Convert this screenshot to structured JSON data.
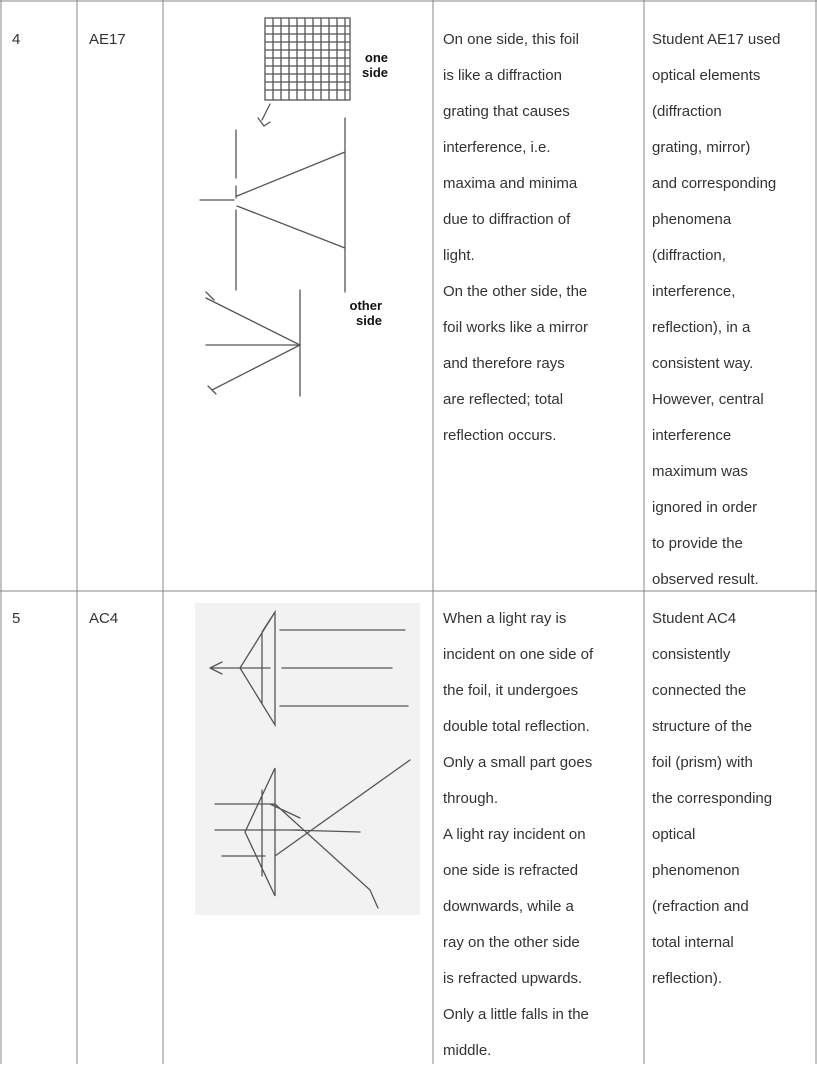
{
  "table": {
    "rows": [
      {
        "number": "4",
        "code": "AE17",
        "figure_labels": [
          [
            "one",
            "side"
          ],
          [
            "other",
            "side"
          ]
        ],
        "description": [
          "On one side, this foil",
          "is like a diffraction",
          "grating that causes",
          "interference, i.e.",
          "maxima and minima",
          "due to diffraction of",
          "light.",
          "On the other side, the",
          "foil works like a mirror",
          "and therefore rays",
          "are reflected; total",
          "reflection occurs."
        ],
        "comment": [
          "Student AE17 used",
          "optical elements",
          "(diffraction",
          "grating, mirror)",
          "and corresponding",
          "phenomena",
          "(diffraction,",
          "interference,",
          "reflection), in a",
          "consistent way.",
          "However, central",
          "interference",
          "maximum was",
          "ignored in order",
          "to provide the",
          "observed result."
        ]
      },
      {
        "number": "5",
        "code": "AC4",
        "description": [
          "When a light ray is",
          "incident on one side of",
          "the foil, it undergoes",
          "double total reflection.",
          "Only a small part goes",
          "through.",
          "A light ray incident on",
          "one side is refracted",
          "downwards, while a",
          "ray on the other side",
          "is refracted upwards.",
          "Only a little falls in the",
          "middle."
        ],
        "comment": [
          "Student AC4",
          "consistently",
          "connected the",
          "structure of the",
          "foil (prism) with",
          "the corresponding",
          "optical",
          "phenomenon",
          "(refraction and",
          "total internal",
          "reflection)."
        ]
      }
    ]
  }
}
